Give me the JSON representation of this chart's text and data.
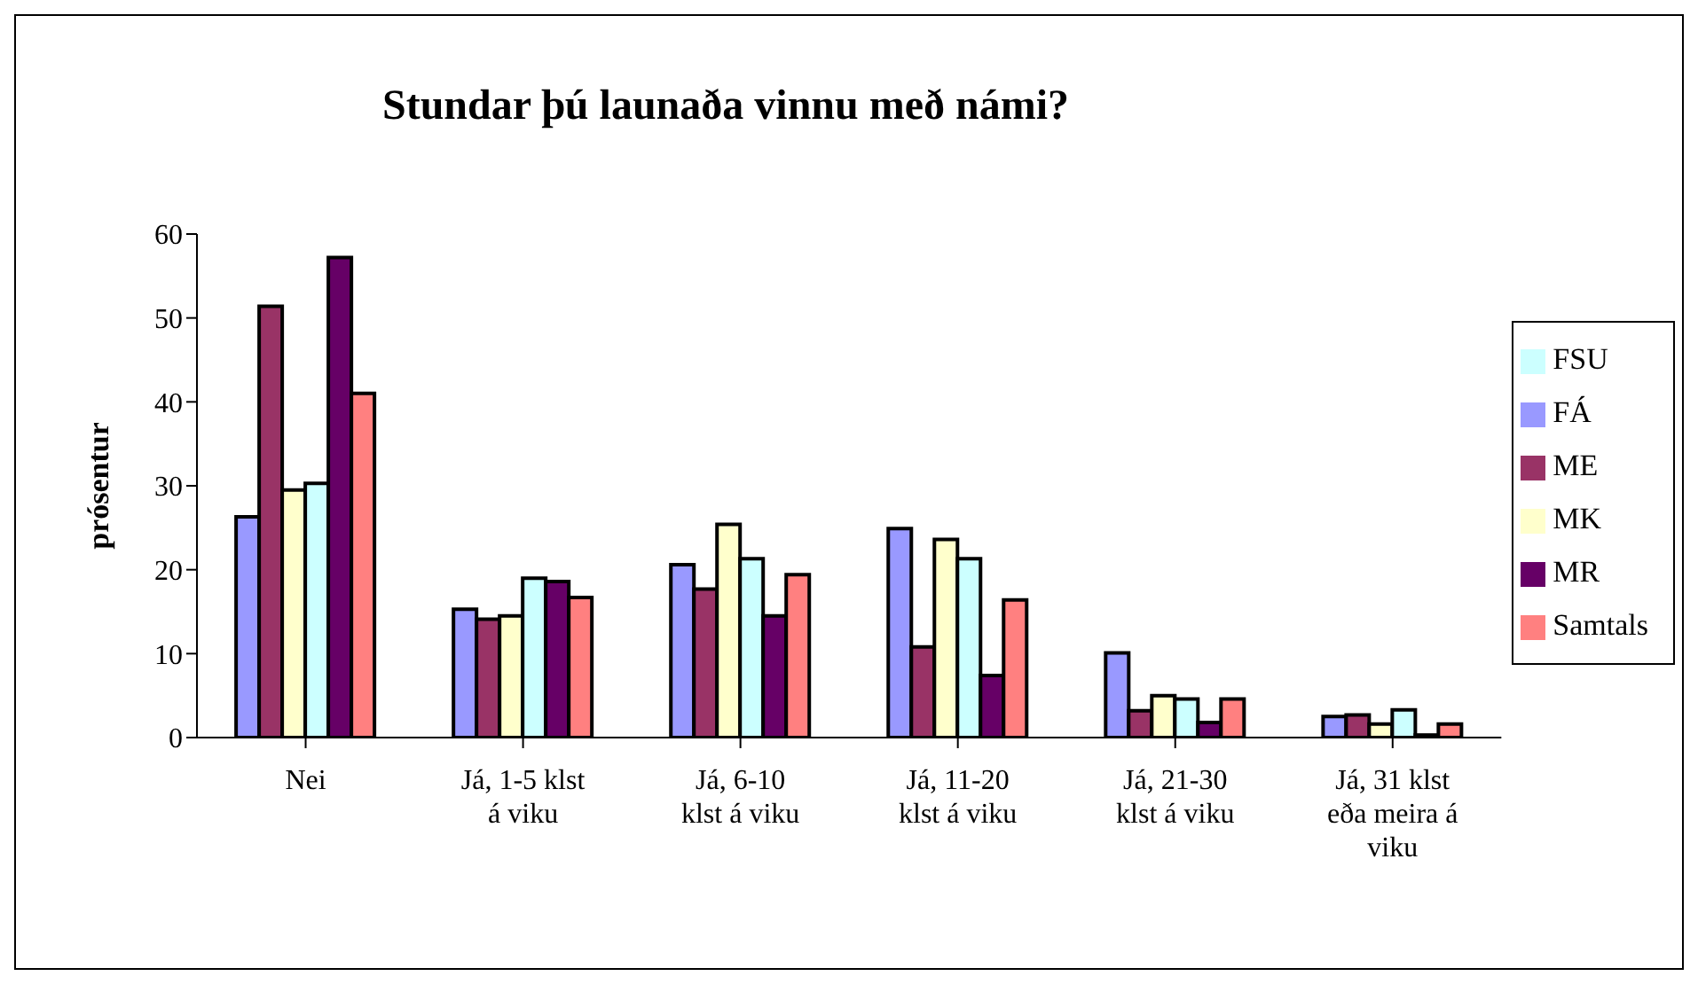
{
  "chart_data": {
    "type": "bar",
    "title": "Stundar þú launaða vinnu með námi?",
    "ylabel": "prósentur",
    "categories": [
      "Nei",
      "Já, 1-5 klst á viku",
      "Já, 6-10 klst á viku",
      "Já, 11-20 klst á viku",
      "Já, 21-30 klst á viku",
      "Já, 31 klst eða meira á viku"
    ],
    "series": [
      {
        "name": "FÁ",
        "color": "#9999ff",
        "values": [
          26.3,
          15.3,
          20.6,
          24.9,
          10.1,
          2.5
        ]
      },
      {
        "name": "ME",
        "color": "#993366",
        "values": [
          51.4,
          14.1,
          17.7,
          10.8,
          3.2,
          2.7
        ]
      },
      {
        "name": "MK",
        "color": "#ffffcc",
        "values": [
          29.5,
          14.5,
          25.4,
          23.6,
          5,
          1.6
        ]
      },
      {
        "name": "FSU",
        "color": "#ccffff",
        "values": [
          30.3,
          19,
          21.3,
          21.3,
          4.6,
          3.3
        ]
      },
      {
        "name": "MR",
        "color": "#660066",
        "values": [
          57.2,
          18.6,
          14.5,
          7.4,
          1.8,
          0.3
        ]
      },
      {
        "name": "Samtals",
        "color": "#ff8080",
        "values": [
          41,
          16.7,
          19.4,
          16.4,
          4.6,
          1.6
        ]
      }
    ],
    "ylim": [
      0,
      60
    ],
    "yticks": [
      0,
      10,
      20,
      30,
      40,
      50,
      60
    ],
    "grid": false,
    "legend": "right"
  }
}
